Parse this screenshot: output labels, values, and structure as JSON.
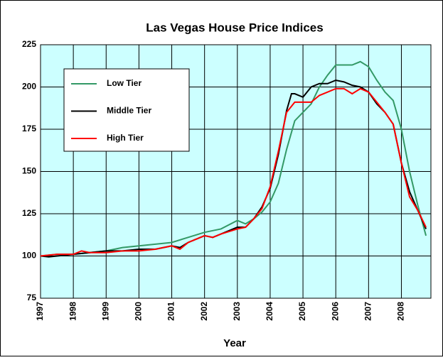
{
  "chart_data": {
    "type": "line",
    "title": "Las Vegas House Price Indices",
    "x_label": "Year",
    "xlim": [
      1997,
      2008.9
    ],
    "xticks": [
      1997,
      1998,
      1999,
      2000,
      2001,
      2002,
      2003,
      2004,
      2005,
      2006,
      2007,
      2008
    ],
    "ylim": [
      75,
      225
    ],
    "yticks": [
      75,
      100,
      125,
      150,
      175,
      200,
      225
    ],
    "grid": true,
    "legend": "upper left",
    "series": [
      {
        "name": "Low Tier",
        "color": "#339966",
        "x": [
          1997,
          1997.5,
          1998,
          1998.5,
          1999,
          1999.5,
          2000,
          2000.5,
          2001,
          2001.5,
          2002,
          2002.5,
          2003,
          2003.25,
          2003.5,
          2003.75,
          2004,
          2004.25,
          2004.5,
          2004.75,
          2005,
          2005.25,
          2005.5,
          2005.75,
          2006,
          2006.5,
          2006.75,
          2007,
          2007.25,
          2007.5,
          2007.75,
          2008,
          2008.25,
          2008.5,
          2008.75
        ],
        "values": [
          100,
          101,
          101,
          102,
          103,
          105,
          106,
          107,
          108,
          111,
          114,
          116,
          121,
          119,
          122,
          126,
          132,
          143,
          163,
          180,
          185,
          190,
          200,
          207,
          213,
          213,
          215,
          212,
          204,
          197,
          192,
          175,
          150,
          130,
          112
        ]
      },
      {
        "name": "Middle Tier",
        "color": "#000000",
        "x": [
          1997,
          1997.25,
          1998,
          1998.5,
          1999,
          1999.5,
          2000,
          2000.5,
          2001,
          2001.25,
          2001.5,
          2002,
          2002.25,
          2002.5,
          2003,
          2003.25,
          2003.5,
          2003.75,
          2004,
          2004.25,
          2004.5,
          2004.65,
          2004.75,
          2005,
          2005.25,
          2005.5,
          2005.75,
          2006,
          2006.25,
          2006.5,
          2006.75,
          2007,
          2007.25,
          2007.5,
          2007.75,
          2008,
          2008.25,
          2008.5,
          2008.75
        ],
        "values": [
          100,
          99.5,
          101,
          102,
          103,
          103,
          104,
          104,
          106,
          105,
          108,
          112,
          111,
          113,
          117,
          117,
          122,
          129,
          140,
          160,
          186,
          196,
          196,
          194,
          200,
          202,
          202,
          204,
          203,
          201,
          200,
          197,
          190,
          185,
          178,
          155,
          138,
          127,
          116
        ]
      },
      {
        "name": "High Tier",
        "color": "#ff0000",
        "x": [
          1997,
          1997.5,
          1998,
          1998.25,
          1998.5,
          1999,
          1999.5,
          2000,
          2000.5,
          2001,
          2001.25,
          2001.5,
          2002,
          2002.25,
          2002.5,
          2003,
          2003.25,
          2003.5,
          2003.75,
          2004,
          2004.25,
          2004.5,
          2004.75,
          2005,
          2005.25,
          2005.5,
          2005.75,
          2006,
          2006.25,
          2006.5,
          2006.75,
          2007,
          2007.25,
          2007.5,
          2007.75,
          2008,
          2008.25,
          2008.5,
          2008.75
        ],
        "values": [
          100,
          101,
          101,
          103,
          102,
          102,
          103,
          103,
          104,
          106,
          104,
          108,
          112,
          111,
          113,
          116,
          117,
          122,
          128,
          141,
          162,
          185,
          191,
          191,
          191,
          195,
          197,
          199,
          199,
          196,
          199,
          197,
          191,
          185,
          178,
          155,
          135,
          127,
          117
        ]
      }
    ]
  }
}
